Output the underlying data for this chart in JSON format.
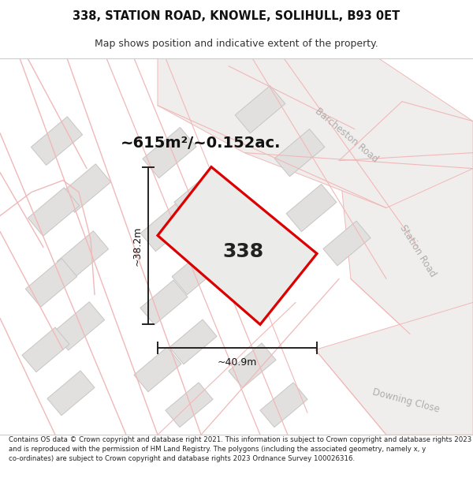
{
  "title_line1": "338, STATION ROAD, KNOWLE, SOLIHULL, B93 0ET",
  "title_line2": "Map shows position and indicative extent of the property.",
  "footer_text": "Contains OS data © Crown copyright and database right 2021. This information is subject to Crown copyright and database rights 2023 and is reproduced with the permission of HM Land Registry. The polygons (including the associated geometry, namely x, y co-ordinates) are subject to Crown copyright and database rights 2023 Ordnance Survey 100026316.",
  "area_label": "~615m²/~0.152ac.",
  "width_label": "~40.9m",
  "height_label": "~38.2m",
  "plot_number": "338",
  "map_bg": "#f7f6f4",
  "building_color": "#e2e0de",
  "building_edge": "#c8c6c4",
  "plot_outline_color": "#dd0000",
  "plot_fill_color": "#ebebea",
  "street_label_color": "#b0aeac",
  "measure_line_color": "#222222",
  "pink_line": "#f0b8b8",
  "pink_fill": "#fce8e8",
  "road_fill": "#f0eeed",
  "barcheston_road_label": "Barcheston Road",
  "station_road_label": "Station Road",
  "downing_close_label": "Downing Close",
  "title_fontsize": 10.5,
  "subtitle_fontsize": 9.0,
  "footer_fontsize": 6.2,
  "area_fontsize": 14,
  "label_fontsize": 9,
  "street_fontsize": 8.5,
  "plot_number_fontsize": 18
}
